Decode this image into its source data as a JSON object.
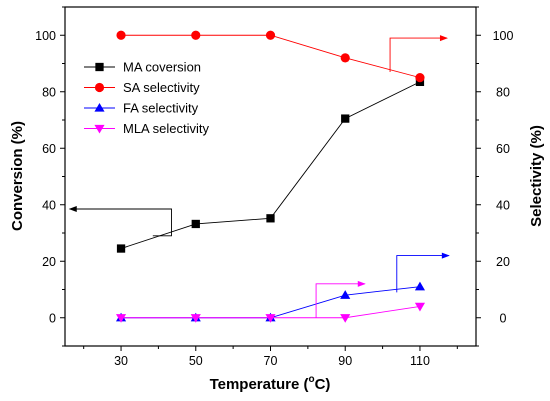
{
  "chart_data": {
    "type": "line",
    "x": [
      30,
      50,
      70,
      90,
      110
    ],
    "xlabel": "Temperature (",
    "xlabel_unit": "o",
    "xlabel_suffix": "C)",
    "ylabel_left": "Conversion (%)",
    "ylabel_right": "Selectivity (%)",
    "ylim_left": [
      -10,
      110
    ],
    "ylim_right": [
      -10,
      110
    ],
    "xlim": [
      15,
      125
    ],
    "x_ticks": [
      "30",
      "50",
      "70",
      "90",
      "110"
    ],
    "y_ticks_left": [
      "0",
      "20",
      "40",
      "60",
      "80",
      "100"
    ],
    "y_ticks_right": [
      "0",
      "20",
      "40",
      "60",
      "80",
      "100"
    ],
    "grid": false,
    "legend_position": "upper-left",
    "series": [
      {
        "name": "MA coversion",
        "axis": "left",
        "color": "#000000",
        "marker": "square",
        "values": [
          24.5,
          33.2,
          35.2,
          70.5,
          83.5
        ]
      },
      {
        "name": "SA selectivity",
        "axis": "right",
        "color": "#ff0000",
        "marker": "circle",
        "values": [
          100,
          100,
          100,
          92,
          85
        ]
      },
      {
        "name": "FA selectivity",
        "axis": "right",
        "color": "#0000ff",
        "marker": "triangle-up",
        "values": [
          0,
          0,
          0,
          8,
          11
        ]
      },
      {
        "name": "MLA selectivity",
        "axis": "right",
        "color": "#ff00ff",
        "marker": "triangle-down",
        "values": [
          0,
          0,
          0,
          0,
          4
        ]
      }
    ],
    "axis_pointers": [
      {
        "series": "MA coversion",
        "direction": "left",
        "color": "#000000"
      },
      {
        "series": "SA selectivity",
        "direction": "right",
        "color": "#ff0000"
      },
      {
        "series": "FA selectivity",
        "direction": "right",
        "color": "#0000ff"
      },
      {
        "series": "MLA selectivity",
        "direction": "right",
        "color": "#ff00ff"
      }
    ]
  }
}
